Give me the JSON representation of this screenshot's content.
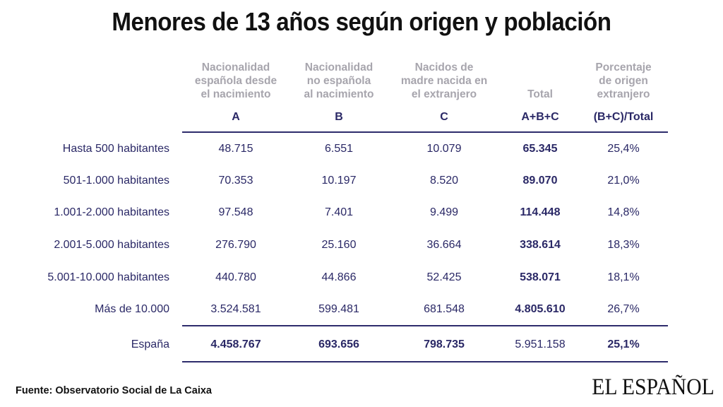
{
  "title": "Menores de 13 años según origen y población",
  "columns": [
    {
      "header": "Nacionalidad\nespañola desde\nel nacimiento",
      "code": "A"
    },
    {
      "header": "Nacionalidad\nno española\nal nacimiento",
      "code": "B"
    },
    {
      "header": "Nacidos de\nmadre nacida en\nel extranjero",
      "code": "C"
    },
    {
      "header": "Total",
      "code": "A+B+C"
    },
    {
      "header": "Porcentaje\nde origen\nextranjero",
      "code": "(B+C)/Total"
    }
  ],
  "rows": [
    {
      "label": "Hasta 500 habitantes",
      "values": [
        "48.715",
        "6.551",
        "10.079",
        "65.345",
        "25,4%"
      ]
    },
    {
      "label": "501-1.000 habitantes",
      "values": [
        "70.353",
        "10.197",
        "8.520",
        "89.070",
        "21,0%"
      ]
    },
    {
      "label": "1.001-2.000 habitantes",
      "values": [
        "97.548",
        "7.401",
        "9.499",
        "114.448",
        "14,8%"
      ]
    },
    {
      "label": "2.001-5.000 habitantes",
      "values": [
        "276.790",
        "25.160",
        "36.664",
        "338.614",
        "18,3%"
      ]
    },
    {
      "label": "5.001-10.000 habitantes",
      "values": [
        "440.780",
        "44.866",
        "52.425",
        "538.071",
        "18,1%"
      ]
    },
    {
      "label": "Más de 10.000",
      "values": [
        "3.524.581",
        "599.481",
        "681.548",
        "4.805.610",
        "26,7%"
      ]
    }
  ],
  "total_row": {
    "label": "España",
    "values": [
      "4.458.767",
      "693.656",
      "798.735",
      "5.951.158",
      "25,1%"
    ]
  },
  "source": "Fuente: Observatorio Social de La Caixa",
  "logo": "EL ESPAÑOL",
  "colors": {
    "navy": "#2a2866",
    "header_gray": "#a7a5ad",
    "rule": "#2e2c6c",
    "title": "#111111"
  },
  "chart_data": {
    "type": "table",
    "title": "Menores de 13 años según origen y población",
    "columns": [
      "Nacionalidad española desde el nacimiento (A)",
      "Nacionalidad no española al nacimiento (B)",
      "Nacidos de madre nacida en el extranjero (C)",
      "Total (A+B+C)",
      "Porcentaje de origen extranjero ((B+C)/Total)"
    ],
    "rows": [
      {
        "label": "Hasta 500 habitantes",
        "A": 48715,
        "B": 6551,
        "C": 10079,
        "total": 65345,
        "pct": 25.4
      },
      {
        "label": "501-1.000 habitantes",
        "A": 70353,
        "B": 10197,
        "C": 8520,
        "total": 89070,
        "pct": 21.0
      },
      {
        "label": "1.001-2.000 habitantes",
        "A": 97548,
        "B": 7401,
        "C": 9499,
        "total": 114448,
        "pct": 14.8
      },
      {
        "label": "2.001-5.000 habitantes",
        "A": 276790,
        "B": 25160,
        "C": 36664,
        "total": 338614,
        "pct": 18.3
      },
      {
        "label": "5.001-10.000 habitantes",
        "A": 440780,
        "B": 44866,
        "C": 52425,
        "total": 538071,
        "pct": 18.1
      },
      {
        "label": "Más de 10.000",
        "A": 3524581,
        "B": 599481,
        "C": 681548,
        "total": 4805610,
        "pct": 26.7
      },
      {
        "label": "España",
        "A": 4458767,
        "B": 693656,
        "C": 798735,
        "total": 5951158,
        "pct": 25.1
      }
    ]
  }
}
